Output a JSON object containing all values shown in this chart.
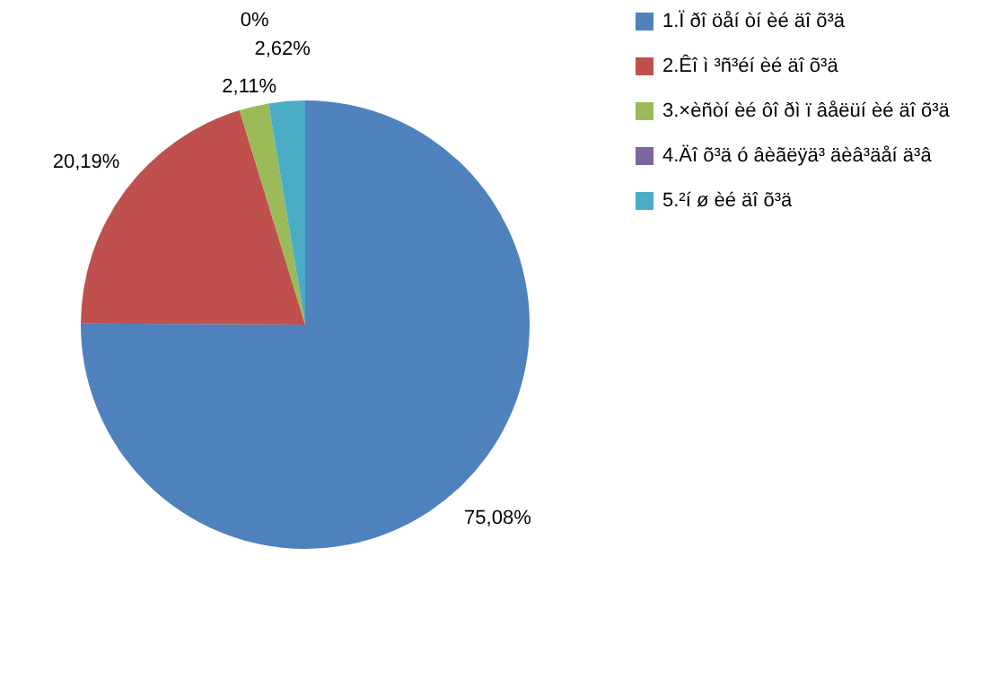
{
  "chart_data": {
    "type": "pie",
    "categories": [
      "1.Ï ðî öåí òí èé äî õ³ä",
      "2.Êî ì ³ñ³éí èé äî õ³ä",
      "3.×èñòí èé ôî ðì ï âåëüí èé äî õ³ä",
      "4.Äî õ³ä ó âèãëÿä³ äèâ³äåí ä³â",
      "5.²í ø èé äî õ³ä"
    ],
    "values": [
      75.08,
      20.19,
      2.11,
      0,
      2.62
    ],
    "colors": [
      "#4f81bd",
      "#c0504d",
      "#9bbb59",
      "#8064a2",
      "#4bacc6"
    ],
    "value_labels": [
      "75,08%",
      "20,19%",
      "2,11%",
      "0%",
      "2,62%"
    ],
    "legend": "right"
  }
}
